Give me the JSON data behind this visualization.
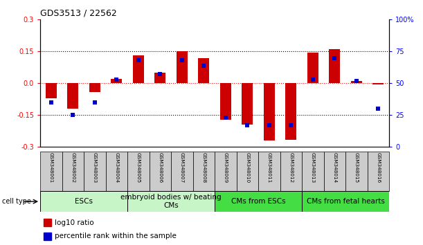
{
  "title": "GDS3513 / 22562",
  "samples": [
    "GSM348001",
    "GSM348002",
    "GSM348003",
    "GSM348004",
    "GSM348005",
    "GSM348006",
    "GSM348007",
    "GSM348008",
    "GSM348009",
    "GSM348010",
    "GSM348011",
    "GSM348012",
    "GSM348013",
    "GSM348014",
    "GSM348015",
    "GSM348016"
  ],
  "log10_ratio": [
    -0.07,
    -0.12,
    -0.04,
    0.02,
    0.13,
    0.05,
    0.15,
    0.12,
    -0.17,
    -0.195,
    -0.27,
    -0.265,
    0.145,
    0.16,
    0.01,
    -0.005
  ],
  "percentile_rank": [
    35,
    25,
    35,
    53,
    68,
    57,
    68,
    64,
    23,
    17,
    17,
    17,
    53,
    70,
    52,
    30
  ],
  "cell_types": [
    {
      "label": "ESCs",
      "start": 0,
      "end": 4,
      "color": "#c8f5c8"
    },
    {
      "label": "embryoid bodies w/ beating\nCMs",
      "start": 4,
      "end": 8,
      "color": "#c8f5c8"
    },
    {
      "label": "CMs from ESCs",
      "start": 8,
      "end": 12,
      "color": "#44dd44"
    },
    {
      "label": "CMs from fetal hearts",
      "start": 12,
      "end": 16,
      "color": "#44dd44"
    }
  ],
  "ylim_left": [
    -0.3,
    0.3
  ],
  "ylim_right": [
    0,
    100
  ],
  "bar_color": "#CC0000",
  "dot_color": "#0000CC",
  "yticks_left": [
    -0.3,
    -0.15,
    0.0,
    0.15,
    0.3
  ],
  "yticks_right": [
    0,
    25,
    50,
    75,
    100
  ],
  "sample_box_color": "#cccccc",
  "cell_type_label_fontsize": 7.5,
  "bar_width": 0.5
}
